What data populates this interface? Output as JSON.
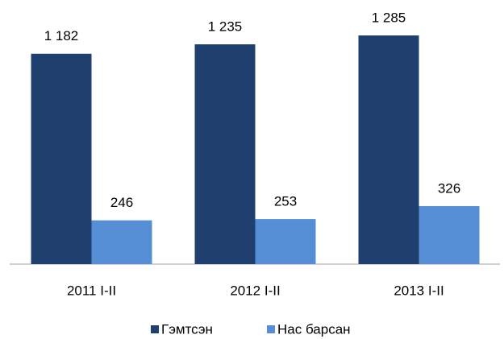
{
  "chart_data": {
    "type": "bar",
    "categories": [
      "2011 I-II",
      "2012 I-II",
      "2013 I-II"
    ],
    "series": [
      {
        "name": "Гэмтсэн",
        "color": "#1f3f6f",
        "values": [
          1182,
          1235,
          1285
        ],
        "value_labels": [
          "1 182",
          "1 235",
          "1 285"
        ]
      },
      {
        "name": "Нас барсан",
        "color": "#558ed5",
        "values": [
          246,
          253,
          326
        ]
      }
    ]
  }
}
